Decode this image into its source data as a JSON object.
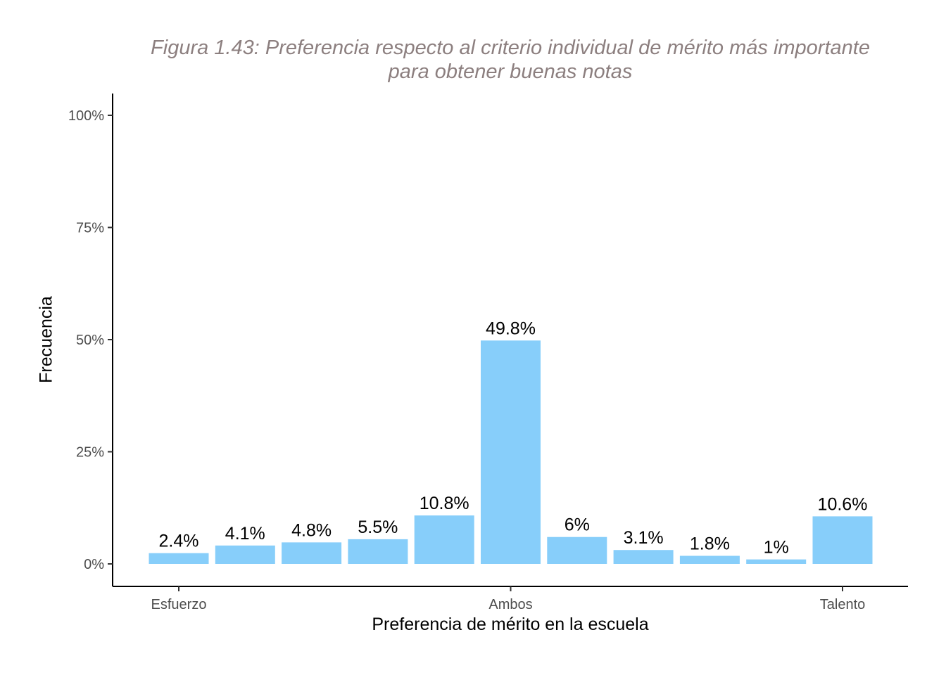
{
  "chart_data": {
    "type": "bar",
    "title": "Figura 1.43: Preferencia respecto al criterio individual de mérito más importante para obtener buenas notas",
    "title_lines": [
      "Figura 1.43: Preferencia respecto al criterio individual de mérito más importante",
      "para obtener buenas notas"
    ],
    "xlabel": "Preferencia de mérito en la escuela",
    "ylabel": "Frecuencia",
    "categories": [
      "1",
      "2",
      "3",
      "4",
      "5",
      "6",
      "7",
      "8",
      "9",
      "10",
      "11"
    ],
    "x_tick_labels": [
      {
        "category_index": 0,
        "label": "Esfuerzo"
      },
      {
        "category_index": 5,
        "label": "Ambos"
      },
      {
        "category_index": 10,
        "label": "Talento"
      }
    ],
    "values": [
      2.4,
      4.1,
      4.8,
      5.5,
      10.8,
      49.8,
      6.0,
      3.1,
      1.8,
      1.0,
      10.6
    ],
    "data_labels": [
      "2.4%",
      "4.1%",
      "4.8%",
      "5.5%",
      "10.8%",
      "49.8%",
      "6%",
      "3.1%",
      "1.8%",
      "1%",
      "10.6%"
    ],
    "ylim": [
      0,
      100
    ],
    "y_ticks": [
      0,
      25,
      50,
      75,
      100
    ],
    "y_tick_labels": [
      "0%",
      "25%",
      "50%",
      "75%",
      "100%"
    ],
    "grid": false,
    "legend": "none",
    "bar_color": "#87CEFA",
    "title_color": "#8c7f7f"
  }
}
